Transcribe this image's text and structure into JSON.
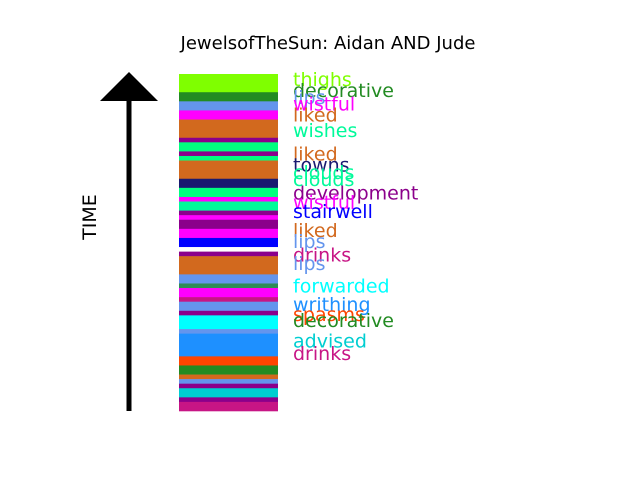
{
  "chart_data": {
    "type": "bar",
    "title": "JewelsofTheSun: Aidan AND Jude",
    "ylabel": "TIME",
    "segments": [
      {
        "color": "#7fff00",
        "units": 2
      },
      {
        "color": "#228b22",
        "units": 1
      },
      {
        "color": "#6495ed",
        "units": 1
      },
      {
        "color": "#ff00ff",
        "units": 1
      },
      {
        "color": "#d2691e",
        "units": 2
      },
      {
        "color": "#8b008b",
        "units": 0.5
      },
      {
        "color": "#00ff7f",
        "units": 1
      },
      {
        "color": "#8b008b",
        "units": 0.5
      },
      {
        "color": "#00ff7f",
        "units": 0.5
      },
      {
        "color": "#d2691e",
        "units": 2
      },
      {
        "color": "#191970",
        "units": 1
      },
      {
        "color": "#00ff7f",
        "units": 1
      },
      {
        "color": "#ff00ff",
        "units": 0.5
      },
      {
        "color": "#00fa9a",
        "units": 1
      },
      {
        "color": "#8b008b",
        "units": 0.5
      },
      {
        "color": "#ff00ff",
        "units": 0.5
      },
      {
        "color": "#8b008b",
        "units": 1
      },
      {
        "color": "#ff00ff",
        "units": 1
      },
      {
        "color": "#0000ff",
        "units": 1
      },
      {
        "color": "#ffffff",
        "units": 0.5
      },
      {
        "color": "#8b008b",
        "units": 0.5
      },
      {
        "color": "#d2691e",
        "units": 2
      },
      {
        "color": "#6495ed",
        "units": 1
      },
      {
        "color": "#2e8b57",
        "units": 0.5
      },
      {
        "color": "#ff00ff",
        "units": 1
      },
      {
        "color": "#c71585",
        "units": 0.5
      },
      {
        "color": "#6495ed",
        "units": 1
      },
      {
        "color": "#8b008b",
        "units": 0.5
      },
      {
        "color": "#00ffff",
        "units": 1.5
      },
      {
        "color": "#6495ed",
        "units": 0.5
      },
      {
        "color": "#1e90ff",
        "units": 2.5
      },
      {
        "color": "#ff4500",
        "units": 1
      },
      {
        "color": "#228b22",
        "units": 1
      },
      {
        "color": "#d2691e",
        "units": 0.5
      },
      {
        "color": "#6495ed",
        "units": 0.5
      },
      {
        "color": "#8b008b",
        "units": 0.5
      },
      {
        "color": "#00ced1",
        "units": 1
      },
      {
        "color": "#8b008b",
        "units": 0.5
      },
      {
        "color": "#c71585",
        "units": 1
      }
    ],
    "labels": [
      {
        "text": "thighs",
        "color": "#7fff00",
        "pos": 0.7
      },
      {
        "text": "decorative",
        "color": "#228b22",
        "pos": 1.9
      },
      {
        "text": "lips",
        "color": "#6495ed",
        "pos": 2.7
      },
      {
        "text": "wistful",
        "color": "#ff00ff",
        "pos": 3.4
      },
      {
        "text": "liked",
        "color": "#d2691e",
        "pos": 4.6
      },
      {
        "text": "wishes",
        "color": "#00fa9a",
        "pos": 6.3
      },
      {
        "text": "liked",
        "color": "#d2691e",
        "pos": 8.9
      },
      {
        "text": "towns",
        "color": "#191970",
        "pos": 10.1
      },
      {
        "text": "clouds",
        "color": "#00fa9a",
        "pos": 10.9
      },
      {
        "text": "clouds",
        "color": "#00fa9a",
        "pos": 11.7
      },
      {
        "text": "development",
        "color": "#8b008b",
        "pos": 13.2
      },
      {
        "text": "wistful",
        "color": "#ff00ff",
        "pos": 14.2
      },
      {
        "text": "stairwell",
        "color": "#0000ff",
        "pos": 15.2
      },
      {
        "text": "liked",
        "color": "#d2691e",
        "pos": 17.3
      },
      {
        "text": "lips",
        "color": "#6495ed",
        "pos": 18.5
      },
      {
        "text": "drinks",
        "color": "#c71585",
        "pos": 20.0
      },
      {
        "text": "lips",
        "color": "#6495ed",
        "pos": 20.9
      },
      {
        "text": "forwarded",
        "color": "#00ffff",
        "pos": 23.4
      },
      {
        "text": "writhing",
        "color": "#1e90ff",
        "pos": 25.4
      },
      {
        "text": "spasms",
        "color": "#ff4500",
        "pos": 26.5
      },
      {
        "text": "decorative",
        "color": "#228b22",
        "pos": 27.2
      },
      {
        "text": "advised",
        "color": "#00ced1",
        "pos": 29.4
      },
      {
        "text": "drinks",
        "color": "#c71585",
        "pos": 30.8
      }
    ]
  }
}
